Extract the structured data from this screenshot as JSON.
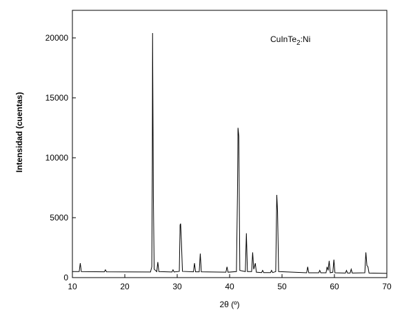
{
  "chart_data": {
    "type": "line",
    "annotation": {
      "text": "CuInTe",
      "subscript": "2",
      "suffix": ":Ni"
    },
    "xlabel": "2θ (º)",
    "ylabel": "Intensidad (cuentas)",
    "xlim": [
      10,
      70
    ],
    "ylim": [
      0,
      22300
    ],
    "xticks": [
      10,
      20,
      30,
      40,
      50,
      60,
      70
    ],
    "yticks": [
      0,
      5000,
      10000,
      15000,
      20000
    ],
    "color": "#000000",
    "x": [
      10,
      11.3,
      11.5,
      11.7,
      16.1,
      16.3,
      16.5,
      24.9,
      25.15,
      25.25,
      25.3,
      25.45,
      25.6,
      26.1,
      26.3,
      26.5,
      29.0,
      29.2,
      29.4,
      30.4,
      30.55,
      30.65,
      30.8,
      31.0,
      33.1,
      33.3,
      33.5,
      34.2,
      34.4,
      34.6,
      39.3,
      39.5,
      39.7,
      41.3,
      41.5,
      41.6,
      41.75,
      41.95,
      43.0,
      43.2,
      43.4,
      44.2,
      44.4,
      44.6,
      44.9,
      45.1,
      46.1,
      46.3,
      46.5,
      47.8,
      48.0,
      48.2,
      48.8,
      49.0,
      49.15,
      49.35,
      54.7,
      54.9,
      55.1,
      57.0,
      57.2,
      57.4,
      58.4,
      58.6,
      58.8,
      59.0,
      59.2,
      59.7,
      59.9,
      60.1,
      62.1,
      62.3,
      62.5,
      63.0,
      63.2,
      63.4,
      65.8,
      66.0,
      66.2,
      66.4,
      66.6,
      70
    ],
    "values": [
      500,
      500,
      1200,
      500,
      480,
      650,
      480,
      470,
      900,
      9600,
      20400,
      6800,
      700,
      500,
      1300,
      500,
      470,
      650,
      470,
      520,
      4400,
      4500,
      3000,
      520,
      480,
      1200,
      480,
      480,
      2000,
      480,
      450,
      900,
      450,
      500,
      7000,
      12500,
      11800,
      600,
      500,
      3700,
      500,
      500,
      2100,
      700,
      1200,
      450,
      420,
      600,
      420,
      420,
      600,
      420,
      500,
      6900,
      5500,
      500,
      400,
      900,
      400,
      400,
      600,
      400,
      400,
      900,
      600,
      1400,
      400,
      450,
      1500,
      400,
      380,
      600,
      380,
      380,
      700,
      380,
      400,
      2100,
      1000,
      900,
      380,
      350
    ]
  }
}
